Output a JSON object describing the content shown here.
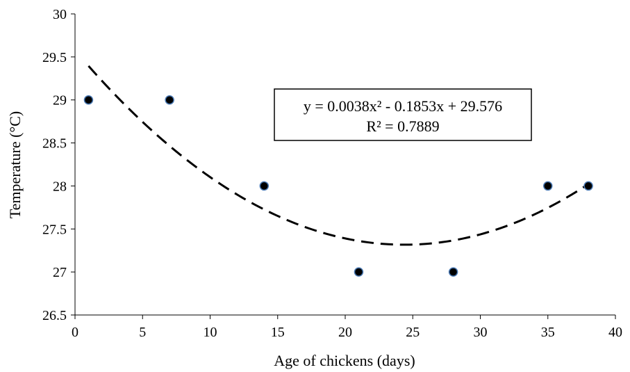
{
  "chart_data": {
    "type": "scatter",
    "title": "",
    "xlabel": "Age of chickens (days)",
    "ylabel": "Temperature (°C)",
    "xlim": [
      0,
      40
    ],
    "ylim": [
      26.5,
      30
    ],
    "x_ticks": [
      0,
      5,
      10,
      15,
      20,
      25,
      30,
      35,
      40
    ],
    "y_ticks": [
      26.5,
      27,
      27.5,
      28,
      28.5,
      29,
      29.5,
      30
    ],
    "x_tick_labels": [
      "0",
      "5",
      "10",
      "15",
      "20",
      "25",
      "30",
      "35",
      "40"
    ],
    "y_tick_labels": [
      "26.5",
      "27",
      "27.5",
      "28",
      "28.5",
      "29",
      "29.5",
      "30"
    ],
    "grid": false,
    "legend": "none",
    "series": [
      {
        "points": [
          {
            "x": 1,
            "y": 29
          },
          {
            "x": 7,
            "y": 29
          },
          {
            "x": 14,
            "y": 28
          },
          {
            "x": 21,
            "y": 27
          },
          {
            "x": 28,
            "y": 27
          },
          {
            "x": 35,
            "y": 28
          },
          {
            "x": 38,
            "y": 28
          }
        ],
        "marker_color": "#000000",
        "marker_edge_color": "#4a7ab5"
      }
    ],
    "trendline": {
      "type": "polynomial",
      "order": 2,
      "coefficients": {
        "a": 0.0038,
        "b": -0.1853,
        "c": 29.576
      },
      "x_range": [
        1,
        38
      ],
      "style": "dashed",
      "color": "#000000"
    },
    "annotations": {
      "equation": "y = 0.0038x² - 0.1853x + 29.576",
      "r_squared": "R² = 0.7889"
    }
  }
}
